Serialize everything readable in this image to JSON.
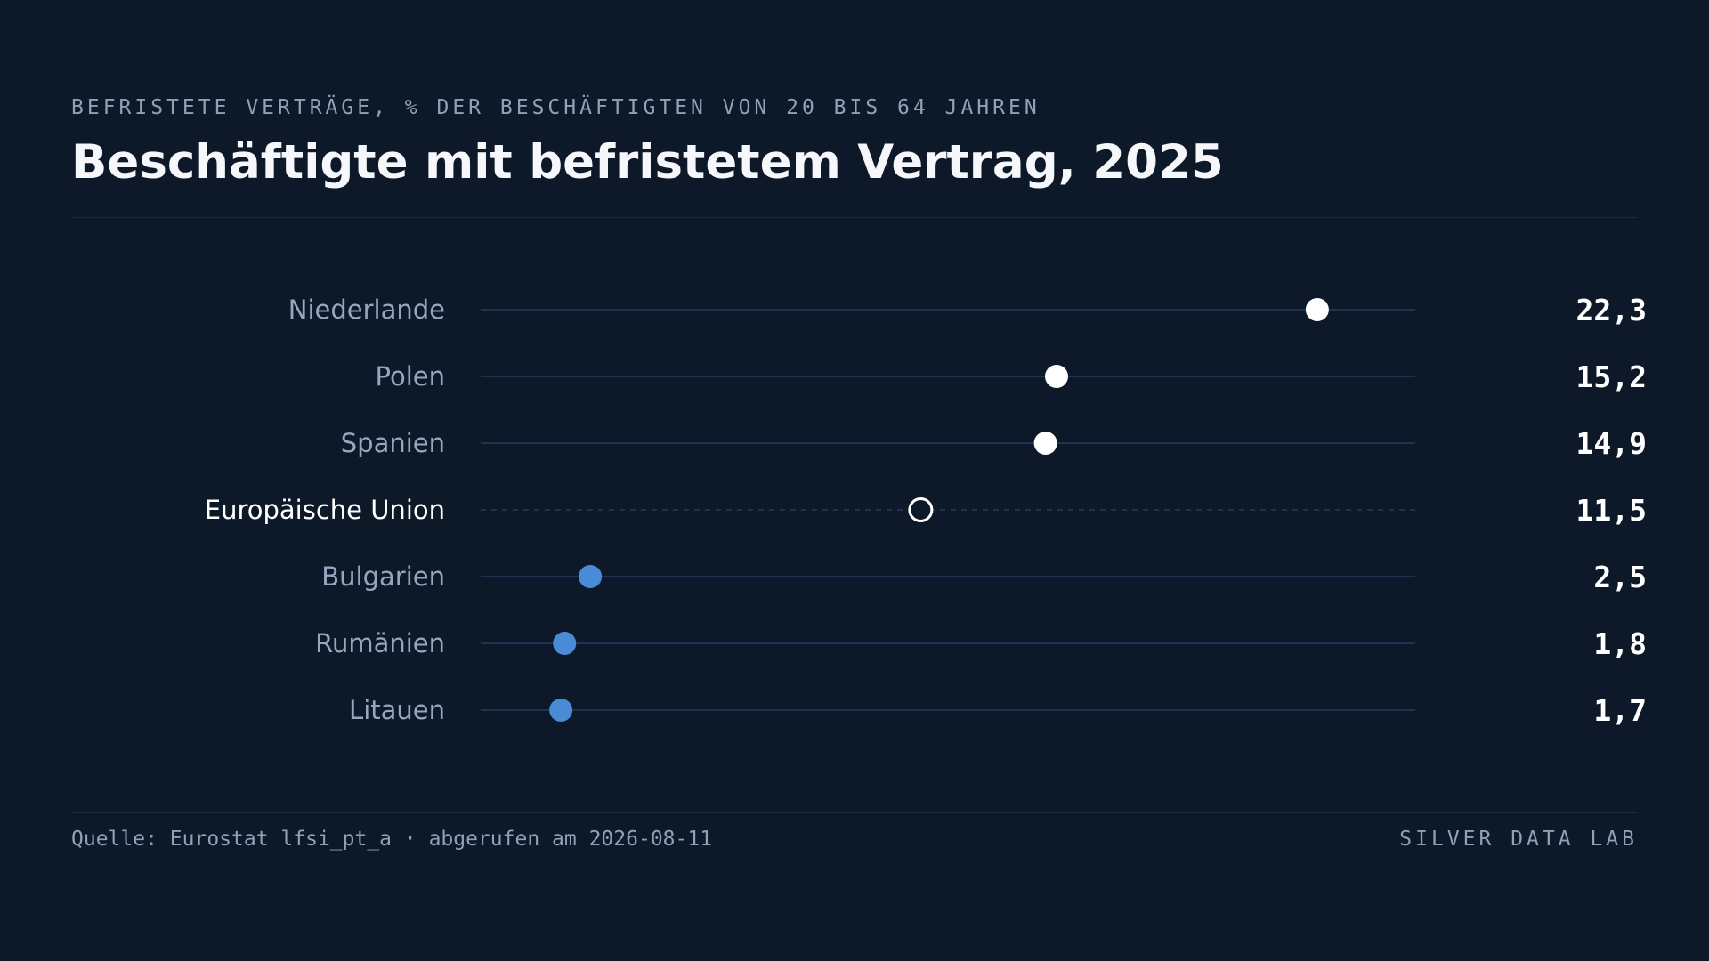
{
  "header": {
    "kicker": "BEFRISTETE VERTRÄGE, % DER BESCHÄFTIGTEN VON 20 BIS 64 JAHREN",
    "title": "Beschäftigte mit befristetem Vertrag, 2025"
  },
  "footer": {
    "source": "Quelle: Eurostat lfsi_pt_a · abgerufen am 2026-08-11",
    "brand": "SILVER DATA LAB"
  },
  "colors": {
    "background": "#0d1829",
    "track": "#1f3350",
    "dot_high": "#ffffff",
    "dot_low": "#4a8bd6",
    "reference_ring": "#ffffff"
  },
  "chart_data": {
    "type": "scatter",
    "subtype": "dot-plot",
    "title": "Beschäftigte mit befristetem Vertrag, 2025",
    "subtitle": "BEFRISTETE VERTRÄGE, % DER BESCHÄFTIGTEN VON 20 BIS 64 JAHREN",
    "xlim": [
      0,
      24
    ],
    "grid": false,
    "legend": "none",
    "categories": [
      "Niederlande",
      "Polen",
      "Spanien",
      "Europäische Union",
      "Bulgarien",
      "Rumänien",
      "Litauen"
    ],
    "values": [
      22.3,
      15.2,
      14.9,
      11.5,
      2.5,
      1.8,
      1.7
    ],
    "value_labels": [
      "22,3",
      "15,2",
      "14,9",
      "11,5",
      "2,5",
      "1,8",
      "1,7"
    ],
    "highlight": [
      "high",
      "high",
      "high",
      "reference",
      "low",
      "low",
      "low"
    ]
  }
}
